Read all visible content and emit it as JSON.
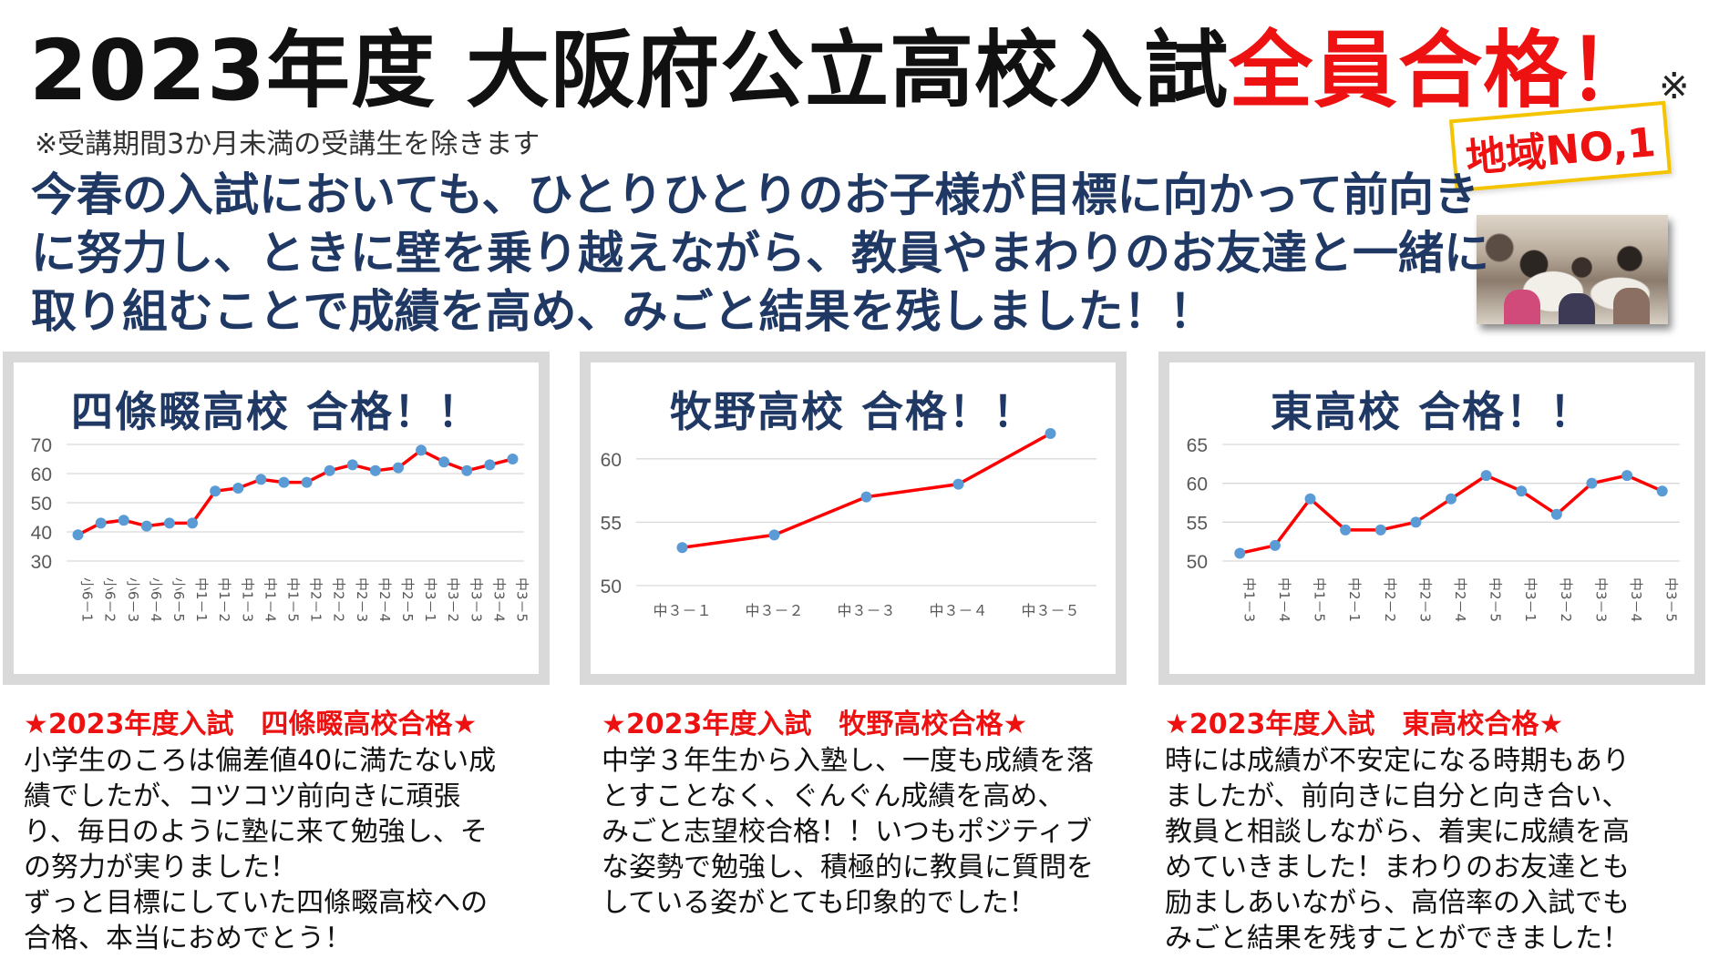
{
  "title": {
    "black": "2023年度 大阪府公立高校入試",
    "red": "全員合格！",
    "mark": "※"
  },
  "note": "※受講期間3か月未満の受講生を除きます",
  "badge": "地域NO,1",
  "lead_lines": [
    "今春の入試においても、ひとりひとりのお子様が目標に向かって前向き",
    "に努力し、ときに壁を乗り越えながら、教員やまわりのお友達と一緒に",
    "取り組むことで成績を高め、みごと結果を残しました！！"
  ],
  "colors": {
    "accent_red": "#ee1111",
    "navy": "#1f3864",
    "line": "#ff0000",
    "marker": "#5b9bd5",
    "panel_border": "#d9d9d9",
    "badge_border": "#f5c400"
  },
  "panels": [
    {
      "title": "四條畷高校 合格！！",
      "story_head": "★2023年度入試　四條畷高校合格★",
      "story_lines": [
        "小学生のころは偏差値40に満たない成",
        "績でしたが、コツコツ前向きに頑張",
        "り、毎日のように塾に来て勉強し、そ",
        "の努力が実りました！",
        "ずっと目標にしていた四條畷高校への",
        "合格、本当におめでとう！"
      ]
    },
    {
      "title": "牧野高校 合格！！",
      "story_head": "★2023年度入試　牧野高校合格★",
      "story_lines": [
        "中学３年生から入塾し、一度も成績を落",
        "とすことなく、ぐんぐん成績を高め、",
        "みごと志望校合格！！いつもポジティブ",
        "な姿勢で勉強し、積極的に教員に質問を",
        "している姿がとても印象的でした！"
      ]
    },
    {
      "title": "東高校 合格！！",
      "story_head": "★2023年度入試　東高校合格★",
      "story_lines": [
        "時には成績が不安定になる時期もあり",
        "ましたが、前向きに自分と向き合い、",
        "教員と相談しながら、着実に成績を高",
        "めていきました！まわりのお友達とも",
        "励ましあいながら、高倍率の入試でも",
        "みごと結果を残すことができました！"
      ]
    }
  ],
  "chart_data": [
    {
      "type": "line",
      "categories": [
        "小6－1",
        "小6－2",
        "小6－3",
        "小6－4",
        "小6－5",
        "中1－1",
        "中1－2",
        "中1－3",
        "中1－4",
        "中1－5",
        "中2－1",
        "中2－2",
        "中2－3",
        "中2－4",
        "中2－5",
        "中3－1",
        "中3－2",
        "中3－3",
        "中3－4",
        "中3－5"
      ],
      "values": [
        39,
        43,
        44,
        42,
        43,
        43,
        54,
        55,
        58,
        57,
        57,
        61,
        63,
        61,
        62,
        68,
        64,
        61,
        63,
        65
      ],
      "yticks": [
        30,
        40,
        50,
        60,
        70
      ],
      "ylim": [
        30,
        70
      ],
      "grid": true,
      "xlabel_rotation": "vertical"
    },
    {
      "type": "line",
      "categories": [
        "中３－１",
        "中３－２",
        "中３－３",
        "中３－４",
        "中３－５"
      ],
      "values": [
        53,
        54,
        57,
        58,
        62
      ],
      "yticks": [
        50,
        55,
        60
      ],
      "ylim": [
        50,
        62
      ],
      "grid": true,
      "xlabel_rotation": "horizontal"
    },
    {
      "type": "line",
      "categories": [
        "中1－3",
        "中1－4",
        "中1－5",
        "中2－1",
        "中2－2",
        "中2－3",
        "中2－4",
        "中2－5",
        "中3－1",
        "中3－2",
        "中3－3",
        "中3－4",
        "中3－5"
      ],
      "values": [
        51,
        52,
        58,
        54,
        54,
        55,
        58,
        61,
        59,
        56,
        60,
        61,
        59
      ],
      "yticks": [
        50,
        55,
        60,
        65
      ],
      "ylim": [
        50,
        65
      ],
      "grid": true,
      "xlabel_rotation": "vertical"
    }
  ]
}
